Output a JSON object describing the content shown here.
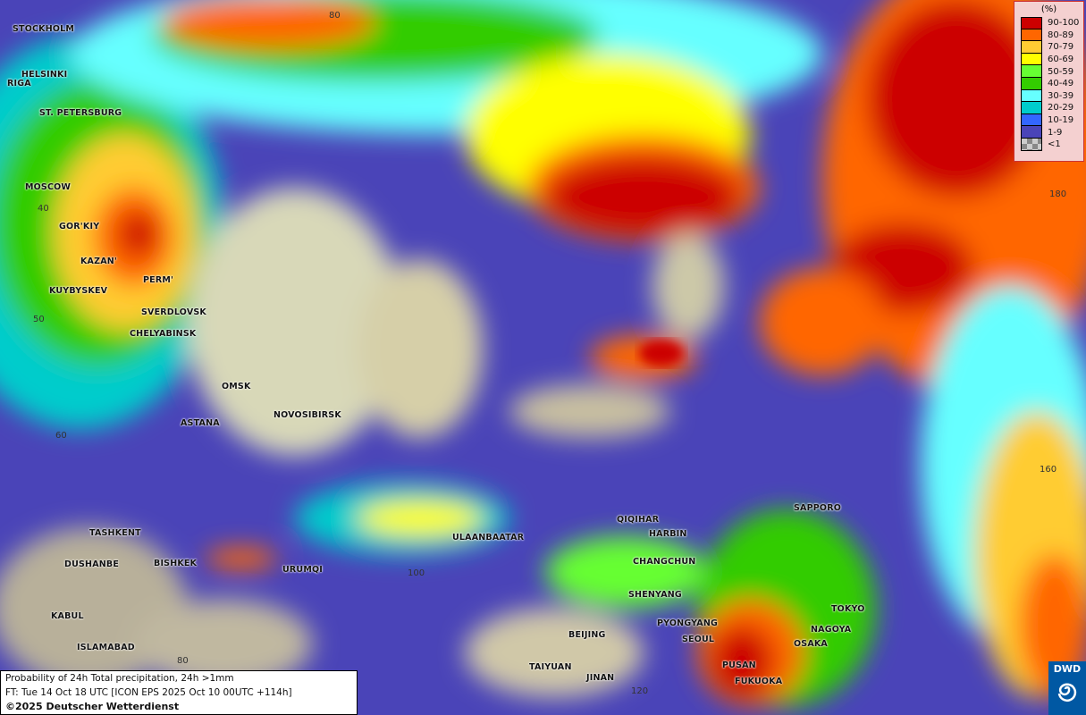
{
  "map": {
    "title": "Probability of 24h Total precipitation, 24h >1mm",
    "forecast_time": "FT: Tue 14 Oct 18 UTC [ICON EPS 2025 Oct 10 00UTC +114h]",
    "copyright": "©2025 Deutscher Wetterdienst",
    "logo_text": "DWD",
    "legend": {
      "unit": "(%)",
      "entries": [
        {
          "label": "90-100",
          "color": "#cc0000"
        },
        {
          "label": "80-89",
          "color": "#ff6600"
        },
        {
          "label": "70-79",
          "color": "#ffcc33"
        },
        {
          "label": "60-69",
          "color": "#ffff00"
        },
        {
          "label": "50-59",
          "color": "#66ff33"
        },
        {
          "label": "40-49",
          "color": "#33cc00"
        },
        {
          "label": "30-39",
          "color": "#66ffff"
        },
        {
          "label": "20-29",
          "color": "#00cccc"
        },
        {
          "label": "10-19",
          "color": "#3366ff"
        },
        {
          "label": "1-9",
          "color": "#4a44b8"
        },
        {
          "label": "<1",
          "color": "checker"
        }
      ]
    },
    "cities": [
      "STOCKHOLM",
      "HELSINKI",
      "RIGA",
      "ST. PETERSBURG",
      "MOSCOW",
      "GOR'KIY",
      "KAZAN'",
      "PERM'",
      "KUYBYSKEV",
      "SVERDLOVSK",
      "CHELYABINSK",
      "OMSK",
      "NOVOSIBIRSK",
      "ASTANA",
      "TASHKENT",
      "BISHKEK",
      "DUSHANBE",
      "URUMQI",
      "KABUL",
      "ISLAMABAD",
      "ULAANBAATAR",
      "QIQIHAR",
      "HARBIN",
      "CHANGCHUN",
      "SHENYANG",
      "PYONGYANG",
      "SEOUL",
      "BEIJING",
      "TAIYUAN",
      "JINAN",
      "PUSAN",
      "FUKUOKA",
      "OSAKA",
      "NAGOYA",
      "TOKYO",
      "SAPPORO"
    ],
    "grid_labels": [
      "80",
      "40",
      "50",
      "60",
      "180",
      "160",
      "100",
      "80",
      "120"
    ]
  }
}
